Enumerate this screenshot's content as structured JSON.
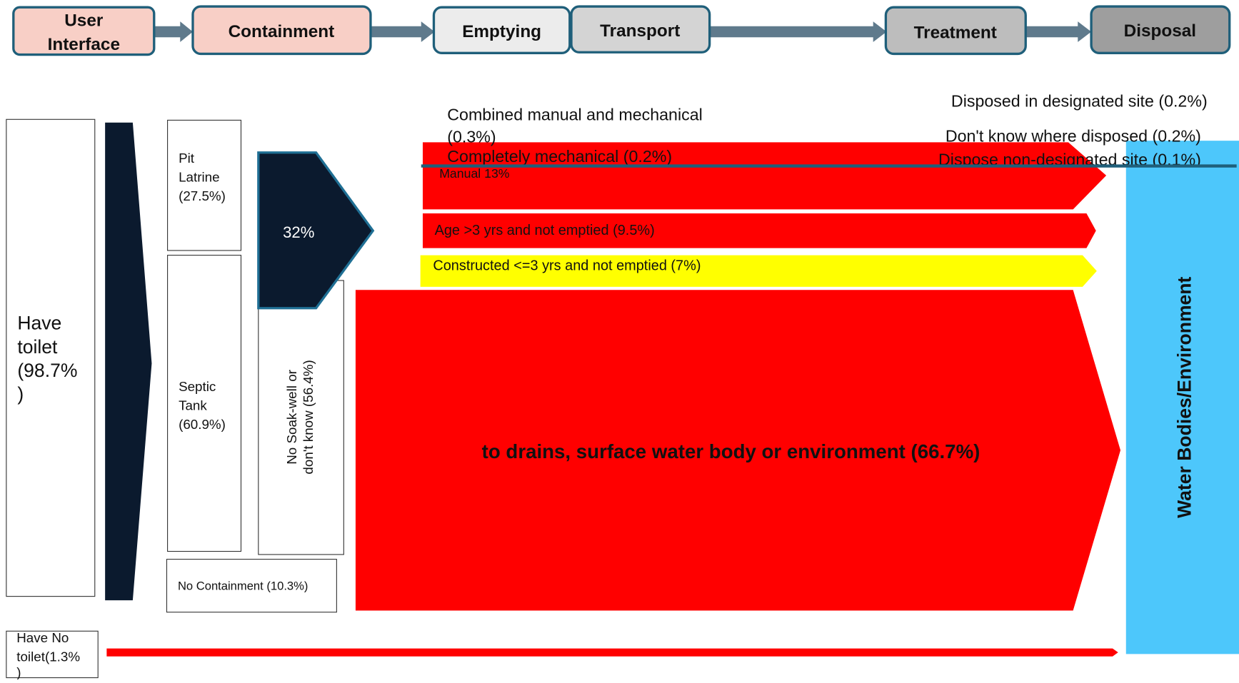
{
  "header": {
    "stages": [
      {
        "lines": [
          "User",
          "Interface"
        ]
      },
      {
        "lines": [
          "Containment"
        ]
      },
      {
        "lines": [
          "Emptying"
        ]
      },
      {
        "lines": [
          "Transport"
        ]
      },
      {
        "lines": [
          "Treatment"
        ]
      },
      {
        "lines": [
          "Disposal"
        ]
      }
    ]
  },
  "nodes": {
    "have_toilet": {
      "lines": [
        "Have",
        "toilet",
        "(98.7%",
        ")"
      ]
    },
    "pit_latrine": {
      "lines": [
        "Pit",
        "Latrine",
        "(27.5%)"
      ]
    },
    "septic_tank": {
      "lines": [
        "Septic",
        "Tank",
        "(60.9%)"
      ]
    },
    "no_containment": "No Containment (10.3%)",
    "soak_share": "32%",
    "no_soak_well": {
      "lines": [
        "No Soak-well  or",
        "don't know (56.4%)"
      ]
    },
    "combined": {
      "lines": [
        "Combined manual and mechanical",
        "(0.3%)"
      ]
    },
    "mechanical": "Completely mechanical (0.2%)",
    "manual": "Manual 13%",
    "not_emptied_old": "Age >3 yrs and not emptied (9.5%)",
    "not_emptied_new": "Constructed <=3 yrs and not emptied (7%)",
    "to_drains": "to drains, surface water body or environment (66.7%)",
    "designated": "Disposed in designated site (0.2%)",
    "dont_know": "Don't know where disposed (0.2%)",
    "non_designated": "Dispose non-designated site (0.1%)",
    "environment": "Water Bodies/Environment",
    "no_toilet": {
      "lines": [
        "Have No",
        "toilet(1.3%",
        ")"
      ]
    }
  }
}
